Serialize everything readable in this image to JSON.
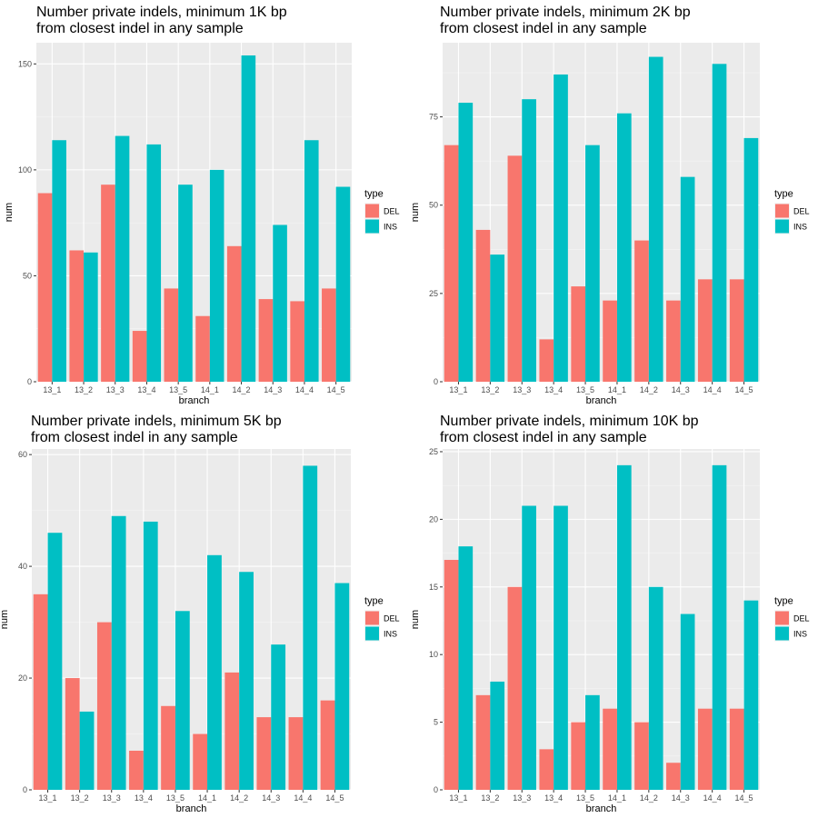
{
  "chart_data": [
    {
      "type": "bar",
      "title": "Number private indels, minimum 1K bp\nfrom closest indel in any sample",
      "xlabel": "branch",
      "ylabel": "num",
      "categories": [
        "13_1",
        "13_2",
        "13_3",
        "13_4",
        "13_5",
        "14_1",
        "14_2",
        "14_3",
        "14_4",
        "14_5"
      ],
      "ylim": [
        0,
        160
      ],
      "yticks": [
        0,
        50,
        100,
        150
      ],
      "grid": true,
      "legend": {
        "title": "type",
        "position": "right"
      },
      "series": [
        {
          "name": "DEL",
          "color": "#F8766D",
          "values": [
            89,
            62,
            93,
            24,
            44,
            31,
            64,
            39,
            38,
            44
          ]
        },
        {
          "name": "INS",
          "color": "#00BFC4",
          "values": [
            114,
            61,
            116,
            112,
            93,
            100,
            154,
            74,
            114,
            92
          ]
        }
      ]
    },
    {
      "type": "bar",
      "title": "Number private indels, minimum 2K bp\nfrom closest indel in any sample",
      "xlabel": "branch",
      "ylabel": "num",
      "categories": [
        "13_1",
        "13_2",
        "13_3",
        "13_4",
        "13_5",
        "14_1",
        "14_2",
        "14_3",
        "14_4",
        "14_5"
      ],
      "ylim": [
        0,
        96
      ],
      "yticks": [
        0,
        25,
        50,
        75
      ],
      "grid": true,
      "legend": {
        "title": "type",
        "position": "right"
      },
      "series": [
        {
          "name": "DEL",
          "color": "#F8766D",
          "values": [
            67,
            43,
            64,
            12,
            27,
            23,
            40,
            23,
            29,
            29
          ]
        },
        {
          "name": "INS",
          "color": "#00BFC4",
          "values": [
            79,
            36,
            80,
            87,
            67,
            76,
            92,
            58,
            90,
            69
          ]
        }
      ]
    },
    {
      "type": "bar",
      "title": "Number private indels, minimum 5K bp\nfrom closest indel in any sample",
      "xlabel": "branch",
      "ylabel": "num",
      "categories": [
        "13_1",
        "13_2",
        "13_3",
        "13_4",
        "13_5",
        "14_1",
        "14_2",
        "14_3",
        "14_4",
        "14_5"
      ],
      "ylim": [
        0,
        61
      ],
      "yticks": [
        0,
        20,
        40,
        60
      ],
      "grid": true,
      "legend": {
        "title": "type",
        "position": "right"
      },
      "series": [
        {
          "name": "DEL",
          "color": "#F8766D",
          "values": [
            35,
            20,
            30,
            7,
            15,
            10,
            21,
            13,
            13,
            16
          ]
        },
        {
          "name": "INS",
          "color": "#00BFC4",
          "values": [
            46,
            14,
            49,
            48,
            32,
            42,
            39,
            26,
            58,
            37
          ]
        }
      ]
    },
    {
      "type": "bar",
      "title": "Number private indels, minimum 10K bp\nfrom closest indel in any sample",
      "xlabel": "branch",
      "ylabel": "num",
      "categories": [
        "13_1",
        "13_2",
        "13_3",
        "13_4",
        "13_5",
        "14_1",
        "14_2",
        "14_3",
        "14_4",
        "14_5"
      ],
      "ylim": [
        0,
        25.2
      ],
      "yticks": [
        0,
        5,
        10,
        15,
        20,
        25
      ],
      "grid": true,
      "legend": {
        "title": "type",
        "position": "right"
      },
      "series": [
        {
          "name": "DEL",
          "color": "#F8766D",
          "values": [
            17,
            7,
            15,
            3,
            5,
            6,
            5,
            2,
            6,
            6
          ]
        },
        {
          "name": "INS",
          "color": "#00BFC4",
          "values": [
            18,
            8,
            21,
            21,
            7,
            24,
            15,
            13,
            24,
            14
          ]
        }
      ]
    }
  ]
}
